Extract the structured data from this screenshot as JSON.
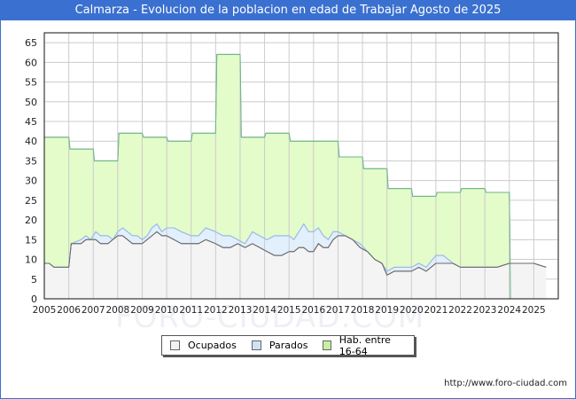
{
  "header": {
    "title": "Calmarza - Evolucion de la poblacion en edad de Trabajar Agosto de 2025"
  },
  "footer": {
    "url": "http://www.foro-ciudad.com",
    "watermark": "FORO-CIUDAD.COM"
  },
  "legend": {
    "items": [
      {
        "label": "Ocupados",
        "color": "#f2f2f2"
      },
      {
        "label": "Parados",
        "color": "#cfe2f8"
      },
      {
        "label": "Hab. entre 16-64",
        "color": "#c8f0a0"
      }
    ]
  },
  "colors": {
    "title_bg": "#3a70d0",
    "habitantes_fill": "#e4fbca",
    "habitantes_line": "#6fb58a",
    "parados_fill": "#e2effc",
    "parados_line": "#9ab8e8",
    "ocupados_fill": "#f4f4f4",
    "ocupados_line": "#6a6a6a",
    "grid": "#cccccc"
  },
  "chart_data": {
    "type": "area",
    "title": "Calmarza - Evolucion de la poblacion en edad de Trabajar Agosto de 2025",
    "xlabel": "",
    "ylabel": "",
    "ylim": [
      0,
      65
    ],
    "yticks": [
      0,
      5,
      10,
      15,
      20,
      25,
      30,
      35,
      40,
      45,
      50,
      55,
      60,
      65
    ],
    "xticks": [
      "2005",
      "2006",
      "2007",
      "2008",
      "2009",
      "2010",
      "2011",
      "2012",
      "2013",
      "2014",
      "2015",
      "2016",
      "2017",
      "2018",
      "2019",
      "2020",
      "2021",
      "2022",
      "2023",
      "2024",
      "2025"
    ],
    "grid": true,
    "legend_position": "bottom",
    "series": [
      {
        "name": "Hab. entre 16-64",
        "x": [
          2005.0,
          2006.0,
          2006.05,
          2007.0,
          2007.05,
          2008.0,
          2008.05,
          2009.0,
          2009.05,
          2010.0,
          2010.05,
          2011.0,
          2011.05,
          2012.0,
          2012.05,
          2013.0,
          2013.05,
          2014.0,
          2014.05,
          2015.0,
          2015.05,
          2017.0,
          2017.05,
          2018.0,
          2018.05,
          2019.0,
          2019.05,
          2020.0,
          2020.05,
          2021.0,
          2021.05,
          2022.0,
          2022.05,
          2023.0,
          2023.05,
          2024.0,
          2024.05
        ],
        "values": [
          41,
          41,
          38,
          38,
          35,
          35,
          42,
          42,
          41,
          41,
          40,
          40,
          42,
          42,
          62,
          62,
          41,
          41,
          42,
          42,
          40,
          40,
          36,
          36,
          33,
          33,
          28,
          28,
          26,
          26,
          27,
          27,
          28,
          28,
          27,
          27,
          0
        ]
      },
      {
        "name": "Parados",
        "note": "top of stacked Ocupados + Parados",
        "x": [
          2005.0,
          2005.2,
          2005.4,
          2005.6,
          2006.0,
          2006.1,
          2006.5,
          2006.7,
          2006.9,
          2007.1,
          2007.3,
          2007.6,
          2007.8,
          2008.0,
          2008.2,
          2008.4,
          2008.6,
          2008.8,
          2009.0,
          2009.2,
          2009.4,
          2009.6,
          2009.8,
          2010.0,
          2010.3,
          2010.6,
          2011.0,
          2011.3,
          2011.6,
          2012.0,
          2012.3,
          2012.6,
          2012.9,
          2013.2,
          2013.5,
          2013.8,
          2014.1,
          2014.4,
          2014.7,
          2015.0,
          2015.2,
          2015.4,
          2015.6,
          2015.8,
          2016.0,
          2016.2,
          2016.4,
          2016.6,
          2016.8,
          2017.0,
          2017.3,
          2017.6,
          2017.9,
          2018.2,
          2018.5,
          2018.8,
          2019.0,
          2019.3,
          2019.6,
          2020.0,
          2020.3,
          2020.6,
          2021.0,
          2021.3,
          2021.7,
          2022.0,
          2022.5,
          2023.0,
          2023.5,
          2024.0,
          2024.5,
          2025.0,
          2025.5
        ],
        "values": [
          9,
          9,
          8,
          8,
          8,
          14,
          15,
          16,
          15,
          17,
          16,
          16,
          15,
          17,
          18,
          17,
          16,
          16,
          15,
          16,
          18,
          19,
          17,
          18,
          18,
          17,
          16,
          16,
          18,
          17,
          16,
          16,
          15,
          14,
          17,
          16,
          15,
          16,
          16,
          16,
          15,
          17,
          19,
          17,
          17,
          18,
          16,
          15,
          17,
          17,
          16,
          15,
          14,
          12,
          10,
          9,
          7,
          8,
          8,
          8,
          9,
          8,
          11,
          11,
          9,
          8,
          8,
          8,
          8,
          9,
          9,
          9,
          8
        ]
      },
      {
        "name": "Ocupados",
        "x": [
          2005.0,
          2005.2,
          2005.4,
          2005.6,
          2006.0,
          2006.1,
          2006.5,
          2006.7,
          2006.9,
          2007.1,
          2007.3,
          2007.6,
          2007.8,
          2008.0,
          2008.2,
          2008.4,
          2008.6,
          2008.8,
          2009.0,
          2009.2,
          2009.4,
          2009.6,
          2009.8,
          2010.0,
          2010.3,
          2010.6,
          2011.0,
          2011.3,
          2011.6,
          2012.0,
          2012.3,
          2012.6,
          2012.9,
          2013.2,
          2013.5,
          2013.8,
          2014.1,
          2014.4,
          2014.7,
          2015.0,
          2015.2,
          2015.4,
          2015.6,
          2015.8,
          2016.0,
          2016.2,
          2016.4,
          2016.6,
          2016.8,
          2017.0,
          2017.3,
          2017.6,
          2017.9,
          2018.2,
          2018.5,
          2018.8,
          2019.0,
          2019.3,
          2019.6,
          2020.0,
          2020.3,
          2020.6,
          2021.0,
          2021.3,
          2021.7,
          2022.0,
          2022.5,
          2023.0,
          2023.5,
          2024.0,
          2024.5,
          2025.0,
          2025.5
        ],
        "values": [
          9,
          9,
          8,
          8,
          8,
          14,
          14,
          15,
          15,
          15,
          14,
          14,
          15,
          16,
          16,
          15,
          14,
          14,
          14,
          15,
          16,
          17,
          16,
          16,
          15,
          14,
          14,
          14,
          15,
          14,
          13,
          13,
          14,
          13,
          14,
          13,
          12,
          11,
          11,
          12,
          12,
          13,
          13,
          12,
          12,
          14,
          13,
          13,
          15,
          16,
          16,
          15,
          13,
          12,
          10,
          9,
          6,
          7,
          7,
          7,
          8,
          7,
          9,
          9,
          9,
          8,
          8,
          8,
          8,
          9,
          9,
          9,
          8
        ]
      }
    ]
  }
}
